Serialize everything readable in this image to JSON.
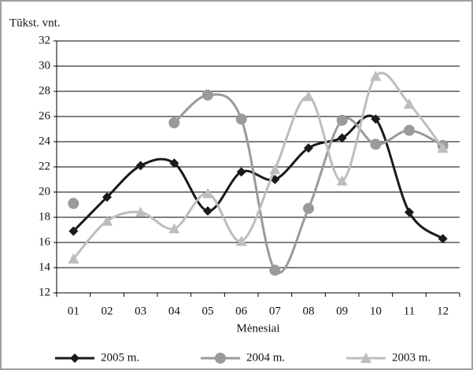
{
  "chart_data": {
    "type": "line",
    "y_label": "Tūkst. vnt.",
    "x_label": "Mėnesiai",
    "categories": [
      "01",
      "02",
      "03",
      "04",
      "05",
      "06",
      "07",
      "08",
      "09",
      "10",
      "11",
      "12"
    ],
    "series": [
      {
        "name": "2005 m.",
        "color": "#1a1a1a",
        "marker": "diamond",
        "values": [
          16.9,
          19.6,
          22.1,
          22.3,
          18.5,
          21.6,
          21.0,
          23.5,
          24.3,
          25.8,
          18.4,
          16.3
        ]
      },
      {
        "name": "2004 m.",
        "color": "#9a9a9a",
        "marker": "circle",
        "values": [
          19.1,
          null,
          null,
          25.5,
          27.7,
          25.8,
          13.8,
          18.7,
          25.7,
          23.8,
          24.9,
          23.7
        ]
      },
      {
        "name": "2003 m.",
        "color": "#bdbdbd",
        "marker": "triangle",
        "values": [
          14.7,
          17.7,
          18.4,
          17.1,
          19.9,
          16.1,
          21.8,
          27.6,
          20.9,
          29.2,
          27.0,
          23.5
        ]
      }
    ],
    "ylim": [
      12,
      32
    ],
    "yticks": [
      12,
      14,
      16,
      18,
      20,
      22,
      24,
      26,
      28,
      30,
      32
    ],
    "grid": true,
    "smooth": true,
    "legend": "bottom"
  }
}
